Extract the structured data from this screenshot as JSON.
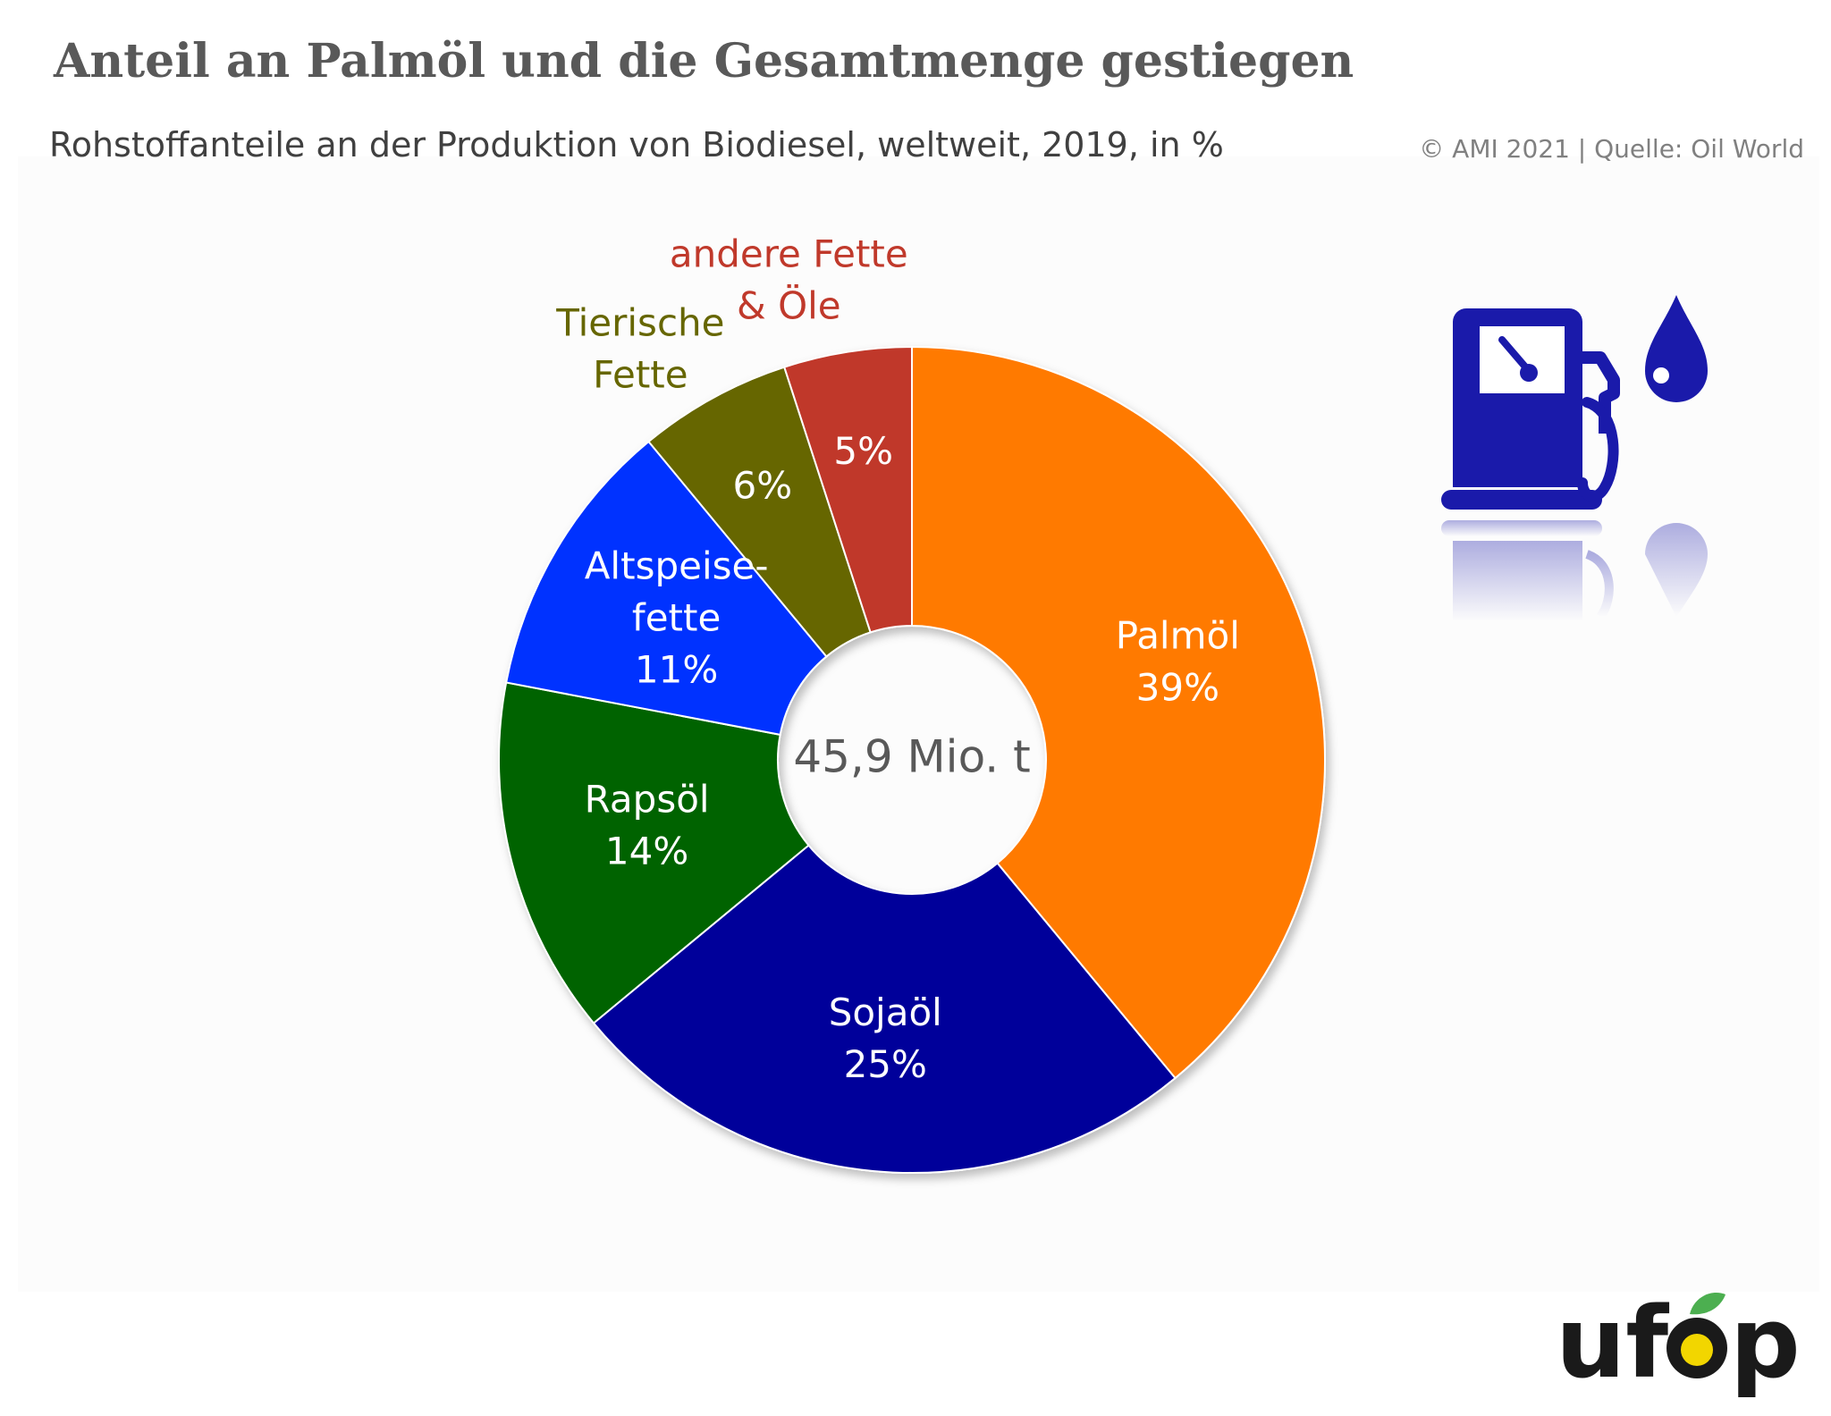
{
  "header": {
    "title": "Anteil an Palmöl und die Gesamtmenge gestiegen",
    "subtitle": "Rohstoffanteile an der Produktion von Biodiesel, weltweit, 2019, in %",
    "source": "© AMI 2021 | Quelle: Oil World"
  },
  "chart_data": {
    "type": "pie",
    "title": "Anteil an Palmöl und die Gesamtmenge gestiegen",
    "subtitle": "Rohstoffanteile an der Produktion von Biodiesel, weltweit, 2019, in %",
    "center_label": "45,9 Mio. t",
    "start_angle_deg": 0,
    "direction": "clockwise",
    "legend": "none",
    "slices": [
      {
        "label": "Palmöl",
        "label_lines": [
          "Palmöl"
        ],
        "value": 39,
        "value_label": "39%",
        "color": "#ff7a00",
        "label_color": "#ffffff",
        "label_placement": "inside"
      },
      {
        "label": "Sojaöl",
        "label_lines": [
          "Sojaöl"
        ],
        "value": 25,
        "value_label": "25%",
        "color": "#00009a",
        "label_color": "#ffffff",
        "label_placement": "inside"
      },
      {
        "label": "Rapsöl",
        "label_lines": [
          "Rapsöl"
        ],
        "value": 14,
        "value_label": "14%",
        "color": "#006400",
        "label_color": "#ffffff",
        "label_placement": "inside"
      },
      {
        "label": "Altspeisefette",
        "label_lines": [
          "Altspeise-",
          "fette"
        ],
        "value": 11,
        "value_label": "11%",
        "color": "#0033ff",
        "label_color": "#ffffff",
        "label_placement": "inside"
      },
      {
        "label": "Tierische Fette",
        "label_lines": [
          "Tierische",
          "Fette"
        ],
        "value": 6,
        "value_label": "6%",
        "color": "#666600",
        "label_color": "#666600",
        "label_placement": "outside",
        "value_color": "#ffffff"
      },
      {
        "label": "andere Fette & Öle",
        "label_lines": [
          "andere Fette",
          "& Öle"
        ],
        "value": 5,
        "value_label": "5%",
        "color": "#c0392b",
        "label_color": "#c0392b",
        "label_placement": "outside",
        "value_color": "#ffffff"
      }
    ]
  },
  "decorations": {
    "icons": [
      "fuel-pump-icon",
      "oil-drop-icon"
    ],
    "icon_color": "#1a1aaa",
    "logo_text": "ufop",
    "logo_colors": {
      "text": "#1a1a1a",
      "accent": "#f2d600",
      "leaf": "#4caf50"
    }
  }
}
